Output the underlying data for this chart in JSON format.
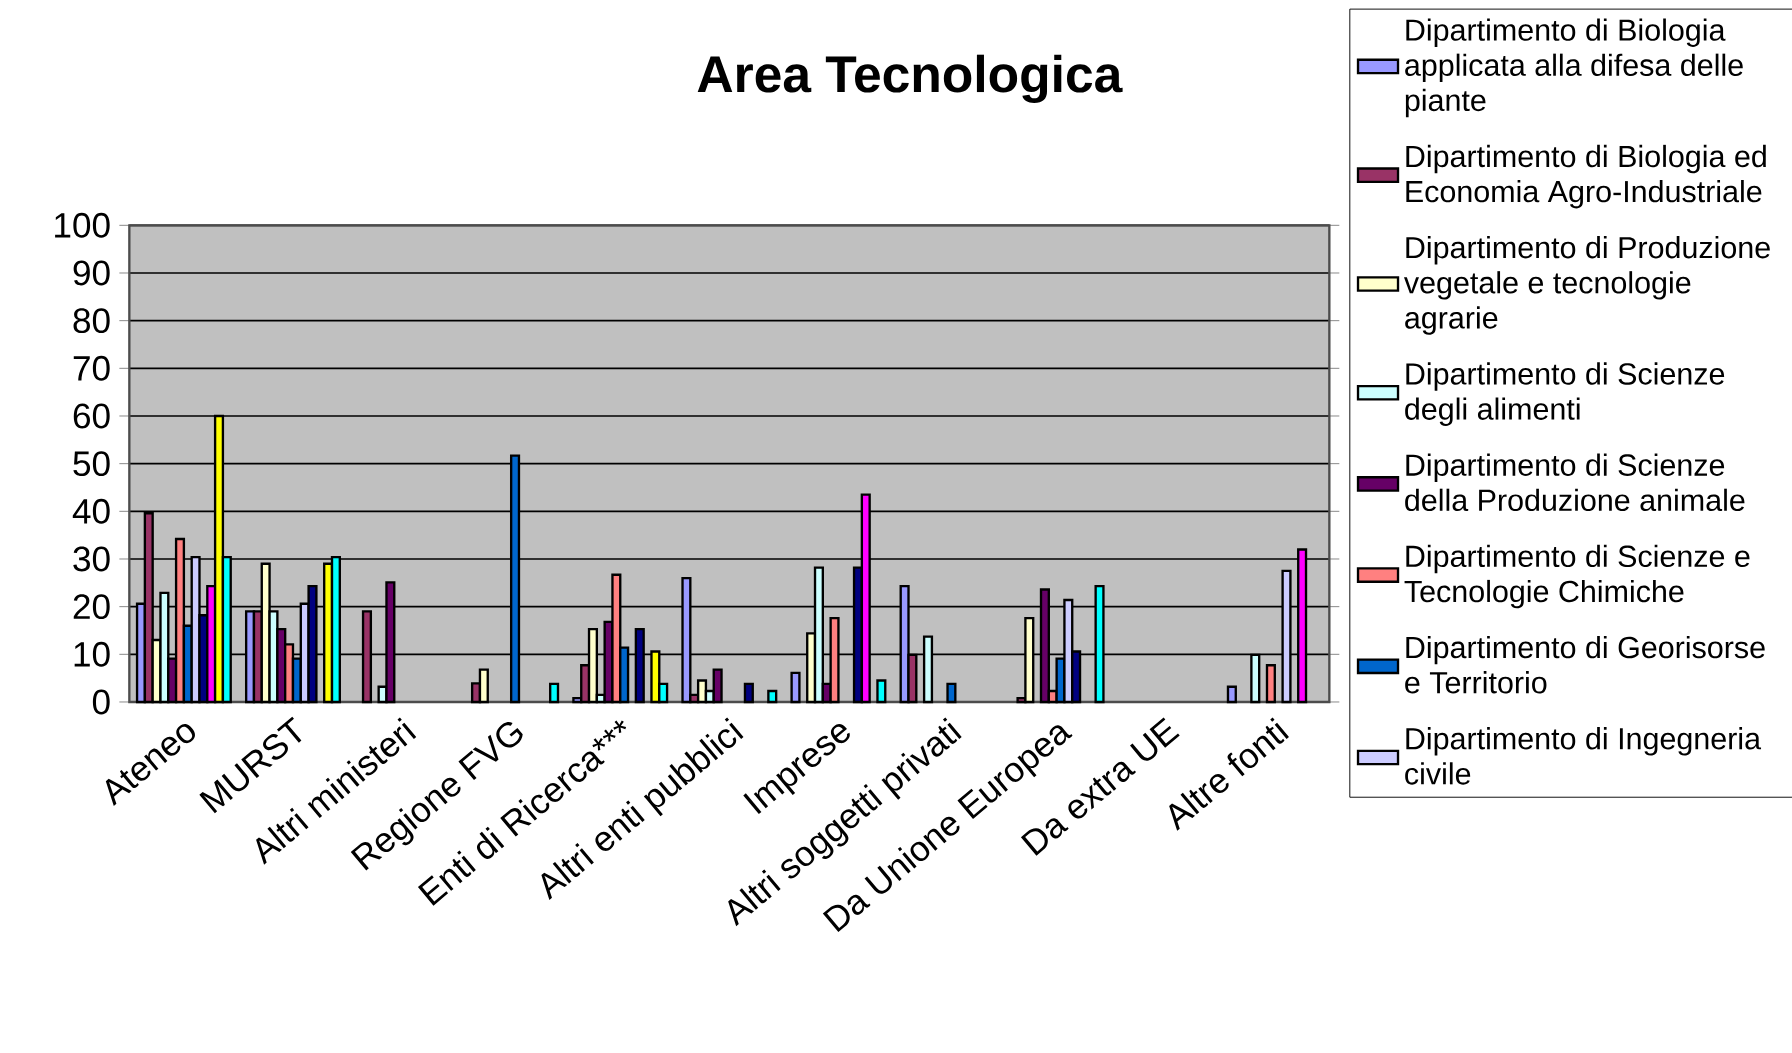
{
  "chart_data": {
    "type": "bar",
    "title": "Area Tecnologica",
    "categories": [
      "Ateneo",
      "MURST",
      "Altri ministeri",
      "Regione FVG",
      "Enti di Ricerca***",
      "Altri enti pubblici",
      "Imprese",
      "Altri soggetti privati",
      "Da Unione Europea",
      "Da extra UE",
      "Altre fonti"
    ],
    "ylim": [
      0,
      100
    ],
    "yticks": [
      0,
      10,
      20,
      30,
      40,
      50,
      60,
      70,
      80,
      90,
      100
    ],
    "grid": "y",
    "legend": "right",
    "series": [
      {
        "name": "Dipartimento di Biologia applicata alla difesa delle piante",
        "color": "#9999ff",
        "values": [
          20.6,
          19,
          null,
          null,
          0.8,
          26,
          6.1,
          24.3,
          null,
          null,
          3.2
        ]
      },
      {
        "name": "Dipartimento di Biologia ed Economia Agro-Industriale",
        "color": "#993366",
        "values": [
          39.6,
          19,
          19,
          3.9,
          7.7,
          1.5,
          null,
          9.9,
          0.8,
          null,
          null
        ]
      },
      {
        "name": "Dipartimento di Produzione vegetale e tecnologie agrarie",
        "color": "#ffffcc",
        "values": [
          13,
          29,
          null,
          6.8,
          15.3,
          4.5,
          14.4,
          null,
          17.6,
          null,
          null
        ]
      },
      {
        "name": "Dipartimento di Scienze degli alimenti",
        "color": "#ccffff",
        "values": [
          22.9,
          19,
          3.2,
          null,
          1.5,
          2.3,
          28.2,
          13.7,
          null,
          null,
          9.9
        ]
      },
      {
        "name": "Dipartimento di Scienze della Produzione animale",
        "color": "#660066",
        "values": [
          9.1,
          15.3,
          25.1,
          null,
          16.8,
          6.8,
          3.8,
          null,
          23.6,
          null,
          null
        ]
      },
      {
        "name": "Dipartimento di Scienze e Tecnologie Chimiche",
        "color": "#ff8080",
        "values": [
          34.2,
          12.1,
          null,
          null,
          26.7,
          null,
          17.6,
          null,
          2.3,
          null,
          7.7
        ]
      },
      {
        "name": "Dipartimento di Georisorse e Territorio",
        "color": "#0066cc",
        "values": [
          16,
          9.1,
          null,
          51.7,
          11.4,
          null,
          null,
          3.8,
          9.1,
          null,
          null
        ]
      },
      {
        "name": "Dipartimento di Ingegneria civile",
        "color": "#ccccff",
        "values": [
          30.4,
          20.6,
          null,
          null,
          null,
          null,
          null,
          null,
          21.4,
          null,
          27.5
        ]
      },
      {
        "color": "#000080",
        "values": [
          18.2,
          24.3,
          null,
          null,
          15.3,
          3.8,
          28.2,
          null,
          10.6,
          null,
          null
        ]
      },
      {
        "color": "#ff00ff",
        "values": [
          24.3,
          null,
          null,
          null,
          null,
          null,
          43.5,
          null,
          null,
          null,
          32
        ]
      },
      {
        "color": "#ffff00",
        "values": [
          60,
          29,
          null,
          null,
          10.6,
          null,
          null,
          null,
          null,
          null,
          null
        ]
      },
      {
        "color": "#00ffff",
        "values": [
          30.4,
          30.4,
          null,
          3.8,
          3.8,
          2.3,
          4.5,
          null,
          24.3,
          null,
          null
        ]
      }
    ]
  }
}
